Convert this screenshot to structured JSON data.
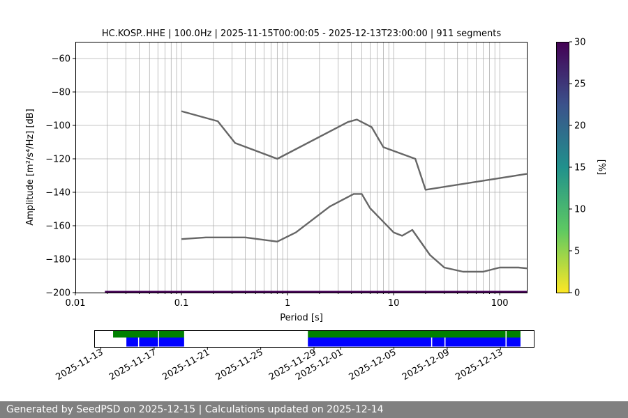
{
  "chart_data": [
    {
      "type": "line",
      "title": "HC.KOSP..HHE | 100.0Hz | 2025-11-15T00:00:05 - 2025-12-13T23:00:00 | 911 segments",
      "xlabel": "Period [s]",
      "ylabel": "Amplitude [m²/s⁴/Hz] [dB]",
      "x_scale": "log",
      "xlim": [
        0.01,
        180
      ],
      "ylim": [
        -200,
        -50
      ],
      "x_ticks": [
        "0.01",
        "0.1",
        "1",
        "10",
        "100"
      ],
      "y_ticks": [
        "−60",
        "−80",
        "−100",
        "−120",
        "−140",
        "−160",
        "−180",
        "−200"
      ],
      "grid": true,
      "series": [
        {
          "name": "",
          "x": [
            0.1,
            0.22,
            0.32,
            0.8,
            3.7,
            4.5,
            6.2,
            8,
            16,
            20,
            180
          ],
          "values": [
            -91.5,
            -97.5,
            -110.5,
            -120,
            -98,
            -96.5,
            -101,
            -113,
            -120,
            -138.5,
            -129
          ]
        },
        {
          "name": "",
          "x": [
            0.1,
            0.17,
            0.4,
            0.8,
            1.2,
            2.5,
            4.2,
            5,
            6,
            10,
            12,
            15,
            22,
            30,
            45,
            70,
            100,
            150,
            180
          ],
          "values": [
            -168,
            -167,
            -167,
            -169.5,
            -164,
            -148.5,
            -141,
            -141,
            -149.5,
            -164,
            -166,
            -162.5,
            -177.5,
            -185,
            -187.5,
            -187.5,
            -185,
            -185,
            -185.5
          ]
        }
      ],
      "colorbar": {
        "label": "[%]",
        "range": [
          0,
          30
        ],
        "ticks": [
          "0",
          "5",
          "10",
          "15",
          "20",
          "25",
          "30"
        ],
        "colormap": "viridis_r",
        "colors": [
          "#fde725",
          "#5ec962",
          "#21918c",
          "#3b528b",
          "#440154"
        ]
      },
      "line_color": "#666666",
      "bottom_band_color": "#440154",
      "bottom_band_start_x": 0.019
    },
    {
      "type": "timeline",
      "x_ticks": [
        "2025-11-13",
        "2025-11-17",
        "2025-11-21",
        "2025-11-25",
        "2025-11-29",
        "2025-12-01",
        "2025-12-05",
        "2025-12-09",
        "2025-12-13"
      ],
      "xlim": [
        "2025-11-12T12:00",
        "2025-12-15T12:00"
      ],
      "rows": [
        {
          "color": "#008000",
          "intervals": [
            [
              "2025-11-13T22:00",
              "2025-11-19T06:00"
            ],
            [
              "2025-11-28T13:00",
              "2025-12-14T12:00"
            ]
          ],
          "gaps": [
            "2025-11-17T08:00",
            "2025-12-13T10:00"
          ]
        },
        {
          "color": "#0000ff",
          "intervals": [
            [
              "2025-11-14T22:00",
              "2025-11-19T06:00"
            ],
            [
              "2025-11-28T13:00",
              "2025-12-14T12:00"
            ]
          ],
          "gaps": [
            "2025-11-15T20:00",
            "2025-11-17T08:00",
            "2025-12-07T20:00",
            "2025-12-08T20:00",
            "2025-12-13T10:00"
          ]
        }
      ]
    }
  ],
  "footer": {
    "text": "Generated by SeedPSD on 2025-12-15 | Calculations updated on 2025-12-14"
  }
}
